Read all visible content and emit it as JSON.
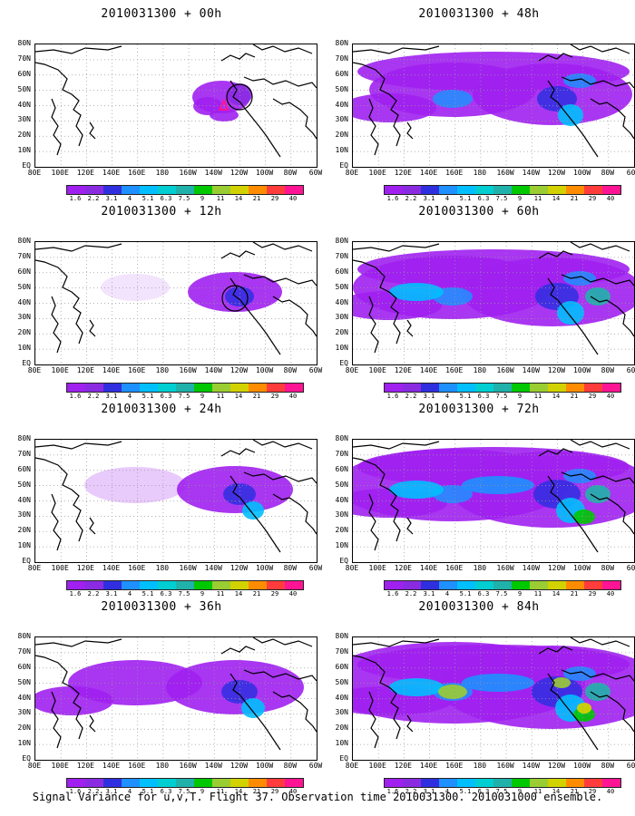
{
  "lat_labels": [
    "80N",
    "70N",
    "60N",
    "50N",
    "40N",
    "30N",
    "20N",
    "10N",
    "EQ"
  ],
  "lon_labels": [
    "80E",
    "100E",
    "120E",
    "140E",
    "160E",
    "180",
    "160W",
    "140W",
    "120W",
    "100W",
    "80W",
    "60W"
  ],
  "colorbar": {
    "levels": [
      "1.6",
      "2.2",
      "3.1",
      "4",
      "5.1",
      "6.3",
      "7.5",
      "9",
      "11",
      "14",
      "21",
      "29",
      "40"
    ],
    "colors": [
      "#a020f0",
      "#8a2be2",
      "#2f2fe0",
      "#1e90ff",
      "#00bfff",
      "#00ced1",
      "#20b2aa",
      "#00c800",
      "#9acd32",
      "#d2d200",
      "#ff8c00",
      "#ff3c3c",
      "#ff1493"
    ]
  },
  "panels": [
    {
      "title": "2010031300 + 00h",
      "intensity": 0
    },
    {
      "title": "2010031300 + 48h",
      "intensity": 4
    },
    {
      "title": "2010031300 + 12h",
      "intensity": 1
    },
    {
      "title": "2010031300 + 60h",
      "intensity": 5
    },
    {
      "title": "2010031300 + 24h",
      "intensity": 2
    },
    {
      "title": "2010031300 + 72h",
      "intensity": 6
    },
    {
      "title": "2010031300 + 36h",
      "intensity": 3
    },
    {
      "title": "2010031300 + 84h",
      "intensity": 7
    }
  ],
  "footer": "Signal Variance for u,v,T. Flight 37. Observation time 2010031300. 2010031000 ensemble."
}
